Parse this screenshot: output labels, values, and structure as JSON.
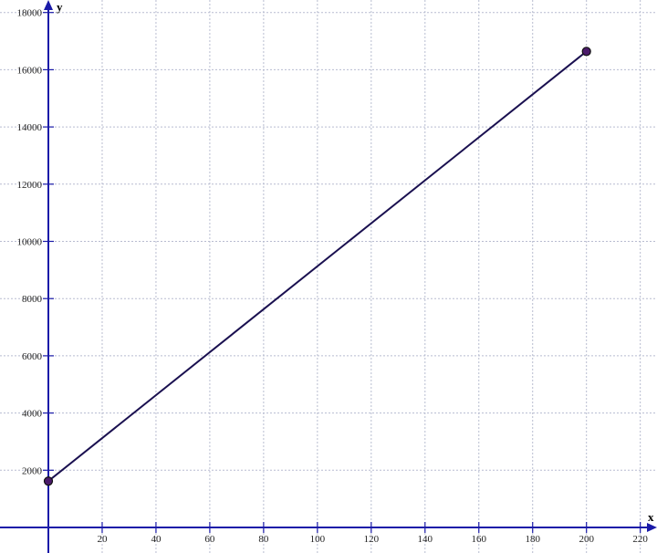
{
  "chart_data": {
    "type": "line",
    "title": "",
    "xlabel": "x",
    "ylabel": "y",
    "xlim": [
      -18,
      227
    ],
    "ylim": [
      -900,
      18500
    ],
    "x_ticks": [
      20,
      40,
      60,
      80,
      100,
      120,
      140,
      160,
      180,
      200,
      220
    ],
    "y_ticks": [
      2000,
      4000,
      6000,
      8000,
      10000,
      12000,
      14000,
      16000,
      18000
    ],
    "grid": true,
    "series": [
      {
        "points": [
          {
            "x": 0,
            "y": 1620
          },
          {
            "x": 200,
            "y": 16640
          }
        ],
        "color": "#1a1050",
        "marker_color": "#4a1a6a"
      }
    ],
    "colors": {
      "axis": "#1a1aa8",
      "grid": "#b8bcd0"
    }
  }
}
